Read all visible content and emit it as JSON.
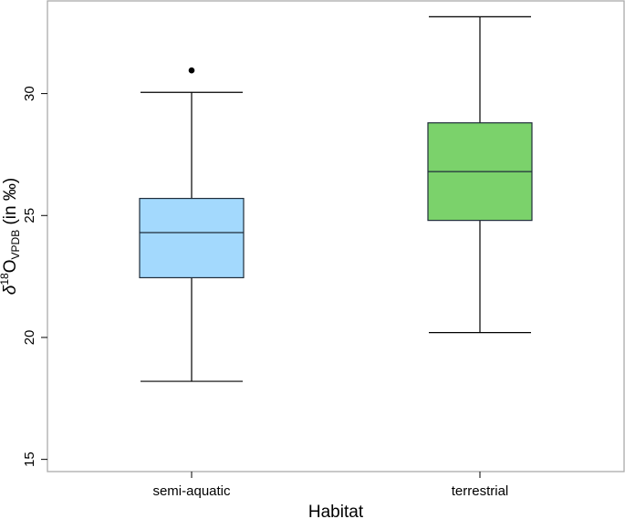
{
  "chart_data": {
    "type": "boxplot",
    "xlabel": "Habitat",
    "ylabel": {
      "prefix": "δ",
      "superscript": "18",
      "base": "O",
      "subscript": "VPDB",
      "suffix": " (in ‰)"
    },
    "ylim": [
      14.5,
      33.8
    ],
    "yticks": [
      15,
      20,
      25,
      30
    ],
    "grid": false,
    "legend": "none",
    "categories": [
      "semi-aquatic",
      "terrestrial"
    ],
    "boxes": [
      {
        "category": "semi-aquatic",
        "whisker_low": 18.2,
        "q1": 22.45,
        "median": 24.3,
        "q3": 25.7,
        "whisker_high": 30.05,
        "outliers": [
          30.95
        ],
        "color": "#A3D9FD"
      },
      {
        "category": "terrestrial",
        "whisker_low": 20.2,
        "q1": 24.8,
        "median": 26.8,
        "q3": 28.8,
        "whisker_high": 33.15,
        "outliers": [],
        "color": "#7BD26B"
      }
    ],
    "colors": {
      "box_stroke": "#1f2d3a",
      "frame": "#aaaaaa",
      "line": "#000000"
    }
  }
}
